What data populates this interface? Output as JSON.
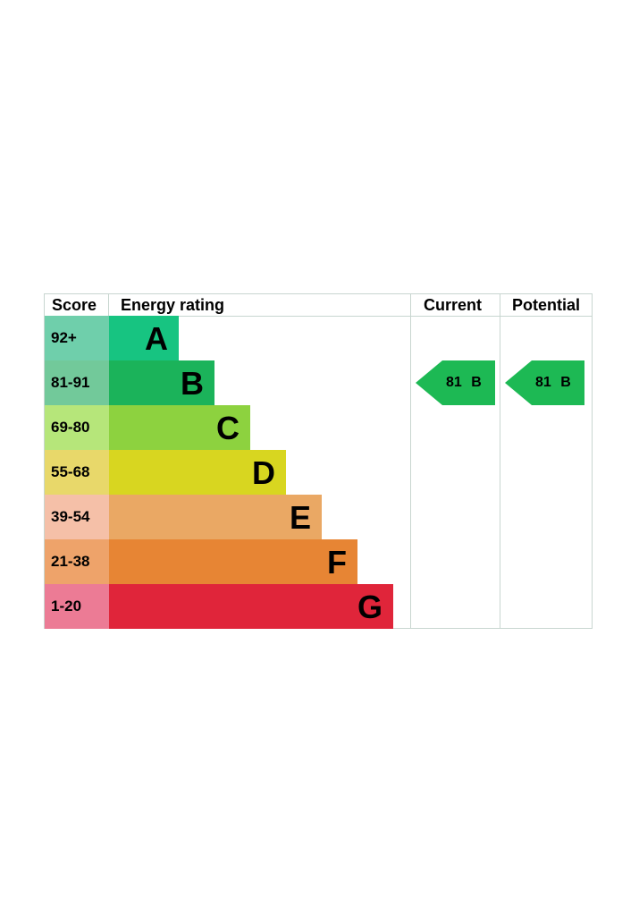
{
  "chart_data": {
    "type": "table",
    "headers": {
      "score": "Score",
      "rating": "Energy rating",
      "current": "Current",
      "potential": "Potential"
    },
    "bands": [
      {
        "score": "92+",
        "letter": "A",
        "color": "#17c481",
        "score_color": "#6fcfab"
      },
      {
        "score": "81-91",
        "letter": "B",
        "color": "#1bb35a",
        "score_color": "#72c99a"
      },
      {
        "score": "69-80",
        "letter": "C",
        "color": "#8dd23f",
        "score_color": "#b6e67a"
      },
      {
        "score": "55-68",
        "letter": "D",
        "color": "#d8d620",
        "score_color": "#e8d86a"
      },
      {
        "score": "39-54",
        "letter": "E",
        "color": "#eaa864",
        "score_color": "#f5c0a8"
      },
      {
        "score": "21-38",
        "letter": "F",
        "color": "#e78534",
        "score_color": "#eea36a"
      },
      {
        "score": "1-20",
        "letter": "G",
        "color": "#e0253a",
        "score_color": "#ec7b95"
      }
    ],
    "current": {
      "value": 81,
      "band": "B",
      "label": "81 B",
      "color": "#1db954"
    },
    "potential": {
      "value": 81,
      "band": "B",
      "label": "81 B",
      "color": "#1db954"
    }
  }
}
